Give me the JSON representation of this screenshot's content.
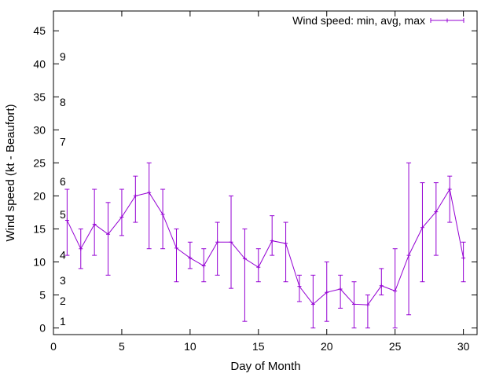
{
  "chart_data": {
    "type": "line",
    "subtype": "errorbars",
    "xlabel": "Day of Month",
    "ylabel": "Wind speed (kt - Beaufort)",
    "xlim": [
      0,
      31
    ],
    "ylim": [
      -1,
      48
    ],
    "xticks": [
      0,
      5,
      10,
      15,
      20,
      25,
      30
    ],
    "yticks": [
      0,
      5,
      10,
      15,
      20,
      25,
      30,
      35,
      40,
      45
    ],
    "grid": false,
    "legend_position": "top-right",
    "series": [
      {
        "name": "Wind speed: min, avg, max",
        "color": "#9400d3",
        "x": [
          1,
          2,
          3,
          4,
          5,
          6,
          7,
          8,
          9,
          10,
          11,
          12,
          13,
          14,
          15,
          16,
          17,
          18,
          19,
          20,
          21,
          22,
          23,
          24,
          25,
          26,
          27,
          28,
          29,
          30
        ],
        "avg": [
          16.3,
          12,
          15.7,
          14.2,
          16.8,
          20,
          20.5,
          17.2,
          12.1,
          10.6,
          9.4,
          13,
          13,
          10.5,
          9.2,
          13.2,
          12.8,
          6.3,
          3.6,
          5.4,
          5.9,
          3.6,
          3.5,
          6.4,
          5.6,
          11,
          15.2,
          17.6,
          21,
          10.6
        ],
        "min": [
          11,
          9,
          11,
          8,
          14,
          16,
          12,
          12,
          7,
          9,
          7,
          8,
          6,
          1,
          7,
          11,
          7,
          4,
          0,
          1,
          3,
          0,
          0,
          5,
          0,
          2,
          7,
          11,
          16,
          7
        ],
        "max": [
          21,
          15,
          21,
          19,
          21,
          23,
          25,
          21,
          15,
          13,
          12,
          16,
          20,
          15,
          12,
          17,
          16,
          8,
          8,
          10,
          8,
          7,
          5,
          9,
          12,
          25,
          22,
          22,
          23,
          13
        ]
      }
    ],
    "annotations": [
      {
        "text": "1",
        "y": 1
      },
      {
        "text": "2",
        "y": 4.1
      },
      {
        "text": "3",
        "y": 7.2
      },
      {
        "text": "4",
        "y": 11.1
      },
      {
        "text": "5",
        "y": 17.2
      },
      {
        "text": "6",
        "y": 22.2
      },
      {
        "text": "7",
        "y": 28.2
      },
      {
        "text": "8",
        "y": 34.2
      },
      {
        "text": "9",
        "y": 41.1
      }
    ]
  }
}
